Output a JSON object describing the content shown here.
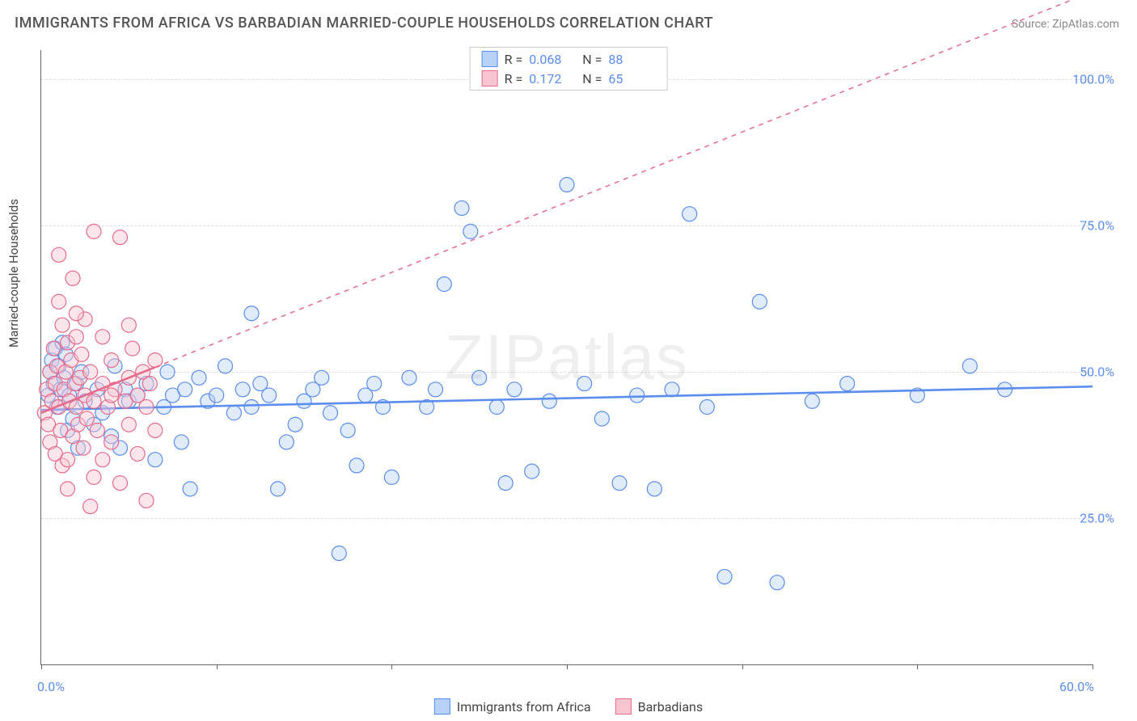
{
  "title": "IMMIGRANTS FROM AFRICA VS BARBADIAN MARRIED-COUPLE HOUSEHOLDS CORRELATION CHART",
  "source_label": "Source:",
  "source_name": "ZipAtlas.com",
  "watermark": "ZIPatlas",
  "ylabel": "Married-couple Households",
  "chart": {
    "type": "scatter",
    "xlim": [
      0,
      60
    ],
    "ylim": [
      0,
      105
    ],
    "x_ticks": [
      0,
      10,
      20,
      30,
      40,
      50,
      60
    ],
    "y_ticks": [
      25,
      50,
      75,
      100
    ],
    "x_tick_labels": {
      "0": "0.0%",
      "60": "60.0%"
    },
    "y_tick_labels": {
      "25": "25.0%",
      "50": "50.0%",
      "75": "75.0%",
      "100": "100.0%"
    },
    "grid_color": "#dddddd",
    "axis_color": "#666666",
    "background_color": "#ffffff",
    "marker_radius": 9,
    "marker_stroke_width": 1.2,
    "marker_fill_opacity": 0.28,
    "trend_line_width": 2.6,
    "trend_dash_width": 1.5,
    "series": [
      {
        "id": "africa",
        "label": "Immigrants from Africa",
        "color": "#5b8def",
        "fill": "#b7d1f7",
        "R": "0.068",
        "N": "88",
        "trend": {
          "y_at_x0": 43.5,
          "y_at_x60": 47.5
        },
        "trend_dashed": false,
        "points": [
          [
            0.4,
            46
          ],
          [
            0.5,
            50
          ],
          [
            0.6,
            52
          ],
          [
            0.7,
            48
          ],
          [
            0.8,
            54
          ],
          [
            0.9,
            44
          ],
          [
            1.0,
            51
          ],
          [
            1.1,
            47
          ],
          [
            1.2,
            55
          ],
          [
            1.3,
            49
          ],
          [
            1.4,
            53
          ],
          [
            1.5,
            40
          ],
          [
            1.6,
            46
          ],
          [
            1.8,
            42
          ],
          [
            2.0,
            48
          ],
          [
            2.1,
            37
          ],
          [
            2.3,
            50
          ],
          [
            2.5,
            45
          ],
          [
            3.0,
            41
          ],
          [
            3.2,
            47
          ],
          [
            3.5,
            43
          ],
          [
            4.0,
            39
          ],
          [
            4.2,
            51
          ],
          [
            4.5,
            37
          ],
          [
            4.8,
            47
          ],
          [
            5.0,
            45
          ],
          [
            5.5,
            46
          ],
          [
            6.0,
            48
          ],
          [
            6.5,
            35
          ],
          [
            7.0,
            44
          ],
          [
            7.2,
            50
          ],
          [
            7.5,
            46
          ],
          [
            8.0,
            38
          ],
          [
            8.2,
            47
          ],
          [
            8.5,
            30
          ],
          [
            9.0,
            49
          ],
          [
            9.5,
            45
          ],
          [
            10.0,
            46
          ],
          [
            10.5,
            51
          ],
          [
            11.0,
            43
          ],
          [
            11.5,
            47
          ],
          [
            12.0,
            44
          ],
          [
            12.5,
            48
          ],
          [
            12.0,
            60
          ],
          [
            13.0,
            46
          ],
          [
            13.5,
            30
          ],
          [
            14.0,
            38
          ],
          [
            14.5,
            41
          ],
          [
            15.0,
            45
          ],
          [
            15.5,
            47
          ],
          [
            16.0,
            49
          ],
          [
            16.5,
            43
          ],
          [
            17.0,
            19
          ],
          [
            17.5,
            40
          ],
          [
            18.0,
            34
          ],
          [
            18.5,
            46
          ],
          [
            19.0,
            48
          ],
          [
            19.5,
            44
          ],
          [
            20.0,
            32
          ],
          [
            21.0,
            49
          ],
          [
            22.0,
            44
          ],
          [
            22.5,
            47
          ],
          [
            23.0,
            65
          ],
          [
            24.0,
            78
          ],
          [
            24.5,
            74
          ],
          [
            25.0,
            49
          ],
          [
            26.0,
            44
          ],
          [
            26.5,
            31
          ],
          [
            27.0,
            47
          ],
          [
            28.0,
            33
          ],
          [
            29.0,
            45
          ],
          [
            30.0,
            82
          ],
          [
            31.0,
            48
          ],
          [
            32.0,
            42
          ],
          [
            33.0,
            31
          ],
          [
            34.0,
            46
          ],
          [
            35.0,
            30
          ],
          [
            36.0,
            47
          ],
          [
            37.0,
            77
          ],
          [
            38.0,
            44
          ],
          [
            39.0,
            15
          ],
          [
            41.0,
            62
          ],
          [
            42.0,
            14
          ],
          [
            44.0,
            45
          ],
          [
            46.0,
            48
          ],
          [
            50.0,
            46
          ],
          [
            53.0,
            51
          ],
          [
            55.0,
            47
          ]
        ]
      },
      {
        "id": "barbadians",
        "label": "Barbadians",
        "color": "#e76b8a",
        "fill": "#f7c5d1",
        "R": "0.172",
        "N": "65",
        "trend": {
          "y_at_x0": 43.0,
          "y_at_x60": 115.0
        },
        "trend_dashed_after_x": 6.5,
        "points": [
          [
            0.2,
            43
          ],
          [
            0.3,
            47
          ],
          [
            0.4,
            41
          ],
          [
            0.5,
            50
          ],
          [
            0.5,
            38
          ],
          [
            0.6,
            45
          ],
          [
            0.7,
            54
          ],
          [
            0.8,
            48
          ],
          [
            0.8,
            36
          ],
          [
            0.9,
            51
          ],
          [
            1.0,
            44
          ],
          [
            1.0,
            62
          ],
          [
            1.1,
            40
          ],
          [
            1.2,
            58
          ],
          [
            1.2,
            34
          ],
          [
            1.3,
            47
          ],
          [
            1.4,
            50
          ],
          [
            1.5,
            55
          ],
          [
            1.5,
            30
          ],
          [
            1.6,
            45
          ],
          [
            1.7,
            52
          ],
          [
            1.8,
            39
          ],
          [
            1.8,
            66
          ],
          [
            1.9,
            48
          ],
          [
            2.0,
            44
          ],
          [
            2.0,
            56
          ],
          [
            2.1,
            41
          ],
          [
            2.2,
            49
          ],
          [
            2.3,
            53
          ],
          [
            2.4,
            37
          ],
          [
            2.5,
            46
          ],
          [
            2.5,
            59
          ],
          [
            2.6,
            42
          ],
          [
            2.8,
            50
          ],
          [
            3.0,
            45
          ],
          [
            3.0,
            74
          ],
          [
            3.2,
            40
          ],
          [
            3.5,
            48
          ],
          [
            3.5,
            56
          ],
          [
            3.8,
            44
          ],
          [
            4.0,
            52
          ],
          [
            4.0,
            38
          ],
          [
            4.2,
            47
          ],
          [
            4.5,
            73
          ],
          [
            4.5,
            31
          ],
          [
            4.8,
            45
          ],
          [
            5.0,
            49
          ],
          [
            5.0,
            41
          ],
          [
            5.2,
            54
          ],
          [
            5.5,
            36
          ],
          [
            5.5,
            46
          ],
          [
            5.8,
            50
          ],
          [
            6.0,
            28
          ],
          [
            6.0,
            44
          ],
          [
            6.2,
            48
          ],
          [
            6.5,
            40
          ],
          [
            6.5,
            52
          ],
          [
            1.0,
            70
          ],
          [
            1.5,
            35
          ],
          [
            2.0,
            60
          ],
          [
            3.0,
            32
          ],
          [
            4.0,
            46
          ],
          [
            5.0,
            58
          ],
          [
            2.8,
            27
          ],
          [
            3.5,
            35
          ]
        ]
      }
    ]
  },
  "legend_top": {
    "R_label": "R =",
    "N_label": "N ="
  }
}
